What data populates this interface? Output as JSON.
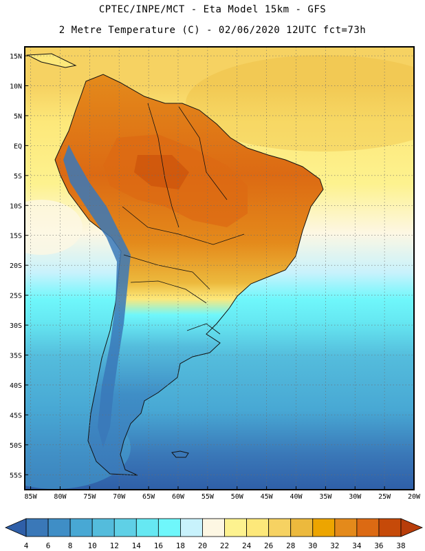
{
  "header": {
    "title_line1": "CPTEC/INPE/MCT -  Eta Model 15km - GFS",
    "title_line2": "2 Metre Temperature (C) - 02/06/2020 12UTC fct=73h"
  },
  "map": {
    "lat_labels": [
      "15N",
      "10N",
      "5N",
      "EQ",
      "5S",
      "10S",
      "15S",
      "20S",
      "25S",
      "30S",
      "35S",
      "40S",
      "45S",
      "50S",
      "55S"
    ],
    "lon_labels": [
      "85W",
      "80W",
      "75W",
      "70W",
      "65W",
      "60W",
      "55W",
      "50W",
      "45W",
      "40W",
      "35W",
      "30W",
      "25W",
      "20W"
    ],
    "lat_extent": [
      -57.5,
      16.5
    ],
    "lon_extent": [
      -86,
      -20
    ],
    "variable": "2 Metre Temperature",
    "units": "C"
  },
  "colorbar": {
    "labels": [
      "4",
      "6",
      "8",
      "10",
      "12",
      "14",
      "16",
      "18",
      "20",
      "22",
      "24",
      "26",
      "28",
      "30",
      "32",
      "34",
      "36",
      "38"
    ],
    "colors": [
      "#2f5fa8",
      "#3a78b8",
      "#3f8ec6",
      "#48a8d4",
      "#54bcdc",
      "#5fd0e6",
      "#66e8f2",
      "#6ff7fb",
      "#c8f2fc",
      "#fdf7e3",
      "#fdf28f",
      "#fde87a",
      "#f6d262",
      "#ecb93d",
      "#eda500",
      "#e48a1b",
      "#dc6a13",
      "#c64a09",
      "#b83d0a"
    ]
  }
}
